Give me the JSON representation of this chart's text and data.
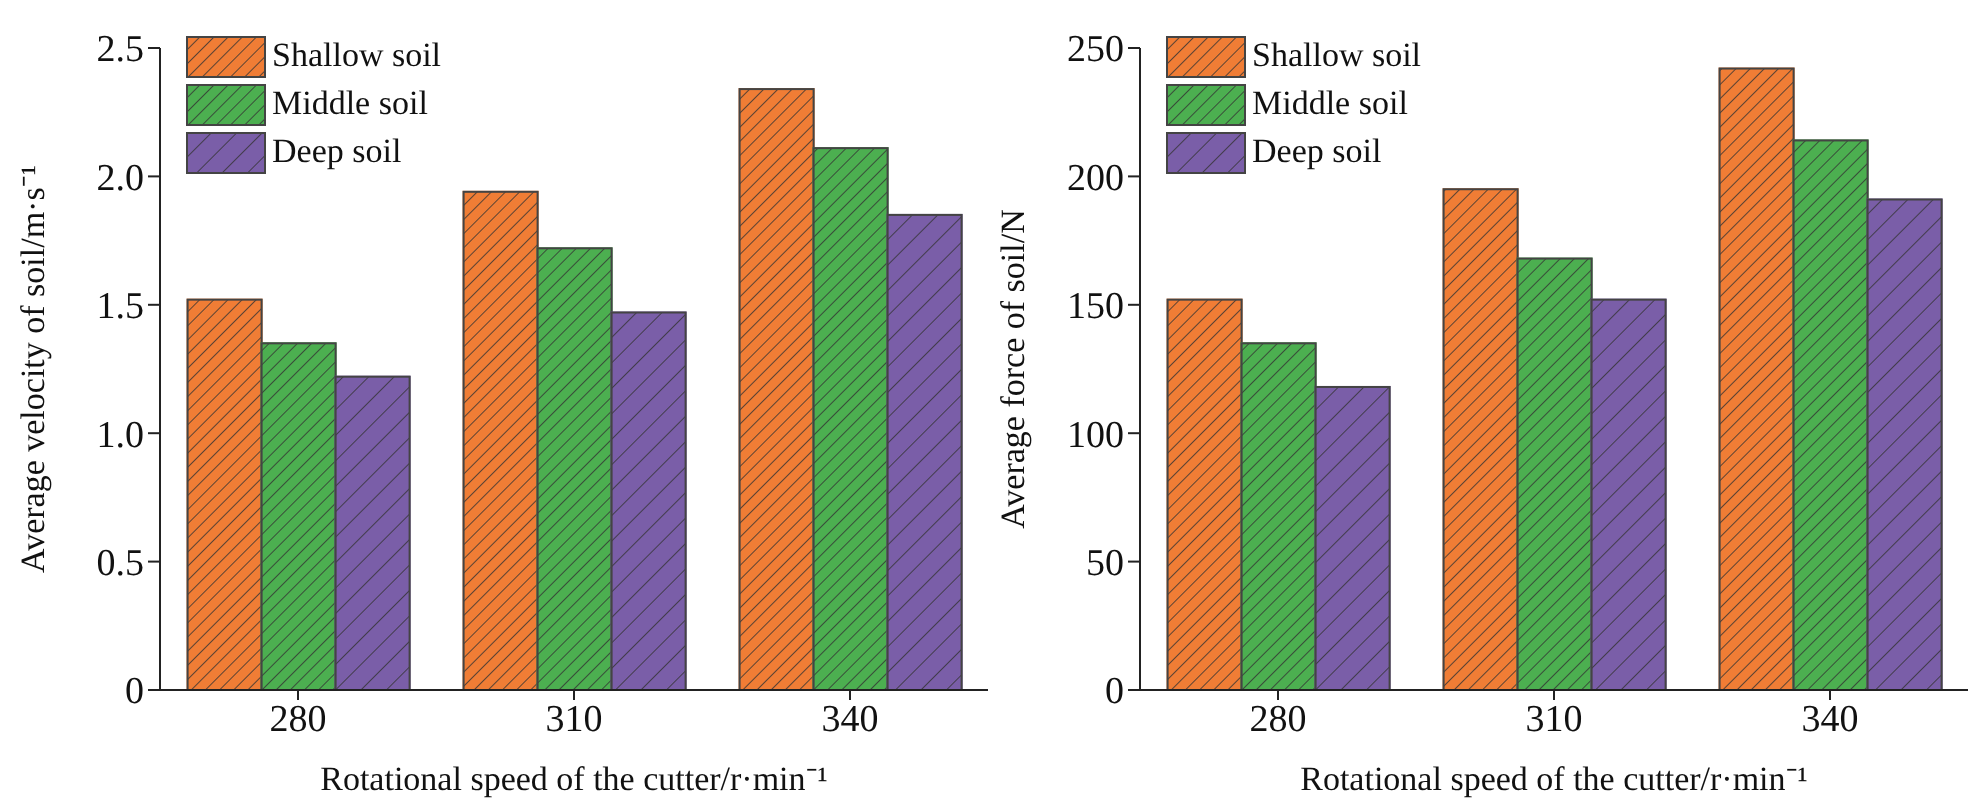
{
  "chart_data": [
    {
      "type": "bar",
      "categories": [
        "280",
        "310",
        "340"
      ],
      "xlabel": "Rotational speed of the cutter/r·min⁻¹",
      "ylabel": "Average velocity of soil/m·s⁻¹",
      "ylim": [
        0,
        2.5
      ],
      "yticks": [
        0,
        0.5,
        {
          "value": 1,
          "label": "1.0"
        },
        1.5,
        {
          "value": 2,
          "label": "2.0"
        },
        2.5
      ],
      "legend": "top left",
      "grid": false,
      "series": [
        {
          "name": "Shallow soil",
          "color": "#f07d35",
          "values": [
            1.52,
            1.94,
            2.34
          ]
        },
        {
          "name": "Middle soil",
          "color": "#4caf50",
          "values": [
            1.35,
            1.72,
            2.11
          ]
        },
        {
          "name": "Deep soil",
          "color": "#7a5ea8",
          "values": [
            1.22,
            1.47,
            1.85
          ]
        }
      ]
    },
    {
      "type": "bar",
      "categories": [
        "280",
        "310",
        "340"
      ],
      "xlabel": "Rotational speed of the cutter/r·min⁻¹",
      "ylabel": "Average force of soil/N",
      "ylim": [
        0,
        250
      ],
      "yticks": [
        0,
        50,
        100,
        150,
        200,
        250
      ],
      "legend": "top left",
      "grid": false,
      "series": [
        {
          "name": "Shallow soil",
          "color": "#f07d35",
          "values": [
            152,
            195,
            242
          ]
        },
        {
          "name": "Middle soil",
          "color": "#4caf50",
          "values": [
            135,
            168,
            214
          ]
        },
        {
          "name": "Deep soil",
          "color": "#7a5ea8",
          "values": [
            118,
            152,
            191
          ]
        }
      ]
    }
  ]
}
